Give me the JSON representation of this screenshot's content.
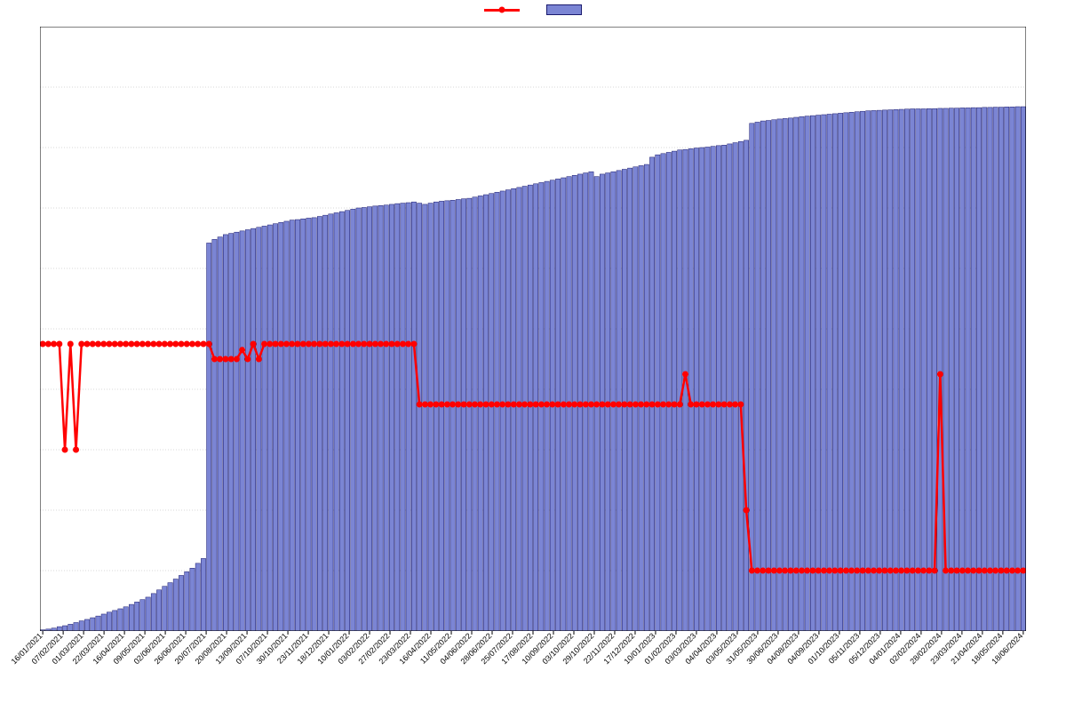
{
  "chart": {
    "type": "combined-bar-line",
    "background_color": "#ffffff",
    "border_color": "#000000",
    "grid_color": "#b0b0b0",
    "left_axis": {
      "min": 0,
      "max": 200,
      "ticks": [
        0,
        20,
        40,
        60,
        80,
        100,
        120,
        140,
        160,
        180,
        200
      ],
      "label_fontsize": 11
    },
    "right_axis": {
      "min": 0,
      "max": 2500,
      "ticks": [
        0,
        500,
        1000,
        1500,
        2000,
        2500
      ],
      "label_fontsize": 11
    },
    "x_labels": [
      "16/01/2021",
      "07/02/2021",
      "01/03/2021",
      "22/03/2021",
      "16/04/2021",
      "09/05/2021",
      "02/06/2021",
      "26/06/2021",
      "20/07/2021",
      "20/08/2021",
      "13/09/2021",
      "07/10/2021",
      "30/10/2021",
      "23/11/2021",
      "18/12/2021",
      "10/01/2022",
      "03/02/2022",
      "27/02/2022",
      "23/03/2022",
      "16/04/2022",
      "11/05/2022",
      "04/06/2022",
      "28/06/2022",
      "25/07/2022",
      "17/08/2022",
      "10/09/2022",
      "03/10/2022",
      "29/10/2022",
      "22/11/2022",
      "17/12/2022",
      "10/01/2023",
      "01/02/2023",
      "03/03/2023",
      "04/04/2023",
      "03/05/2023",
      "31/05/2023",
      "30/06/2023",
      "04/08/2023",
      "04/09/2023",
      "01/10/2023",
      "05/11/2023",
      "05/12/2023",
      "04/01/2024",
      "02/02/2024",
      "28/02/2024",
      "23/03/2024",
      "21/04/2024",
      "18/05/2024",
      "18/06/2024"
    ],
    "n_points": 178,
    "line_series": {
      "color": "#ff0000",
      "width": 2.5,
      "marker_size": 3.5,
      "values": [
        95,
        95,
        95,
        95,
        60,
        95,
        60,
        95,
        95,
        95,
        95,
        95,
        95,
        95,
        95,
        95,
        95,
        95,
        95,
        95,
        95,
        95,
        95,
        95,
        95,
        95,
        95,
        95,
        95,
        95,
        95,
        90,
        90,
        90,
        90,
        90,
        93,
        90,
        95,
        90,
        95,
        95,
        95,
        95,
        95,
        95,
        95,
        95,
        95,
        95,
        95,
        95,
        95,
        95,
        95,
        95,
        95,
        95,
        95,
        95,
        95,
        95,
        95,
        95,
        95,
        95,
        95,
        95,
        75,
        75,
        75,
        75,
        75,
        75,
        75,
        75,
        75,
        75,
        75,
        75,
        75,
        75,
        75,
        75,
        75,
        75,
        75,
        75,
        75,
        75,
        75,
        75,
        75,
        75,
        75,
        75,
        75,
        75,
        75,
        75,
        75,
        75,
        75,
        75,
        75,
        75,
        75,
        75,
        75,
        75,
        75,
        75,
        75,
        75,
        75,
        75,
        85,
        75,
        75,
        75,
        75,
        75,
        75,
        75,
        75,
        75,
        75,
        40,
        20,
        20,
        20,
        20,
        20,
        20,
        20,
        20,
        20,
        20,
        20,
        20,
        20,
        20,
        20,
        20,
        20,
        20,
        20,
        20,
        20,
        20,
        20,
        20,
        20,
        20,
        20,
        20,
        20,
        20,
        20,
        20,
        20,
        20,
        85,
        20,
        20,
        20,
        20,
        20,
        20,
        20,
        20,
        20,
        20,
        20,
        20,
        20,
        20,
        20
      ]
    },
    "bar_series": {
      "fill_color": "#7b85d4",
      "edge_color": "#1a1a6e",
      "values": [
        5,
        8,
        12,
        18,
        22,
        28,
        35,
        42,
        48,
        55,
        62,
        70,
        78,
        85,
        92,
        100,
        110,
        120,
        130,
        140,
        155,
        170,
        185,
        200,
        215,
        230,
        245,
        260,
        280,
        300,
        1605,
        1620,
        1630,
        1640,
        1645,
        1650,
        1655,
        1660,
        1665,
        1670,
        1675,
        1680,
        1685,
        1690,
        1695,
        1700,
        1702,
        1705,
        1708,
        1710,
        1715,
        1720,
        1725,
        1730,
        1735,
        1740,
        1745,
        1750,
        1752,
        1755,
        1758,
        1760,
        1762,
        1765,
        1768,
        1770,
        1772,
        1775,
        1770,
        1765,
        1770,
        1775,
        1778,
        1780,
        1782,
        1785,
        1788,
        1790,
        1795,
        1800,
        1805,
        1810,
        1815,
        1820,
        1825,
        1830,
        1835,
        1840,
        1845,
        1850,
        1855,
        1860,
        1865,
        1870,
        1875,
        1880,
        1885,
        1890,
        1895,
        1900,
        1880,
        1890,
        1895,
        1900,
        1905,
        1910,
        1915,
        1920,
        1925,
        1930,
        1960,
        1970,
        1975,
        1980,
        1985,
        1990,
        1992,
        1995,
        1998,
        2000,
        2002,
        2005,
        2008,
        2010,
        2015,
        2020,
        2025,
        2030,
        2100,
        2105,
        2110,
        2112,
        2115,
        2118,
        2120,
        2122,
        2125,
        2128,
        2130,
        2132,
        2134,
        2136,
        2138,
        2140,
        2142,
        2144,
        2146,
        2148,
        2150,
        2152,
        2153,
        2154,
        2155,
        2156,
        2157,
        2158,
        2159,
        2160,
        2160,
        2160,
        2161,
        2161,
        2162,
        2162,
        2163,
        2163,
        2164,
        2164,
        2165,
        2165,
        2166,
        2166,
        2167,
        2167,
        2168,
        2168,
        2169,
        2169
      ]
    },
    "x_label_fontsize": 9,
    "x_label_rotation": 45
  },
  "legend": {
    "line_color": "#ff0000",
    "bar_fill": "#7b85d4",
    "bar_edge": "#1a1a6e"
  }
}
